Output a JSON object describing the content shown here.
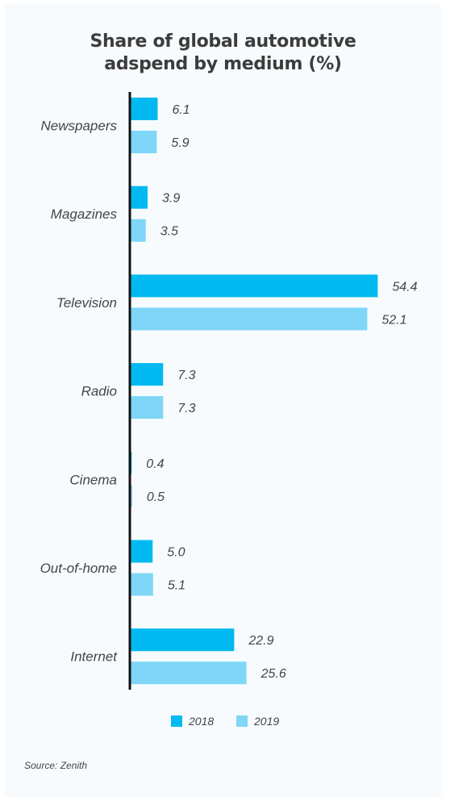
{
  "chart_data": {
    "type": "bar",
    "orientation": "horizontal",
    "title": [
      "Share of global automotive",
      "adspend by medium (%)"
    ],
    "categories": [
      "Newspapers",
      "Magazines",
      "Television",
      "Radio",
      "Cinema",
      "Out-of-home",
      "Internet"
    ],
    "series": [
      {
        "name": "2018",
        "color": "#00b9f0",
        "values": [
          6.1,
          3.9,
          54.4,
          7.3,
          0.4,
          5.0,
          22.9
        ],
        "labels": [
          "6.1",
          "3.9",
          "54.4",
          "7.3",
          "0.4",
          "5.0",
          "22.9"
        ]
      },
      {
        "name": "2019",
        "color": "#7fd6f7",
        "values": [
          5.9,
          3.5,
          52.1,
          7.3,
          0.5,
          5.1,
          25.6
        ],
        "labels": [
          "5.9",
          "3.5",
          "52.1",
          "7.3",
          "0.5",
          "5.1",
          "25.6"
        ]
      }
    ],
    "xlim": [
      0,
      60
    ],
    "grid": false,
    "legend": "bottom"
  },
  "source": "Source: Zenith"
}
